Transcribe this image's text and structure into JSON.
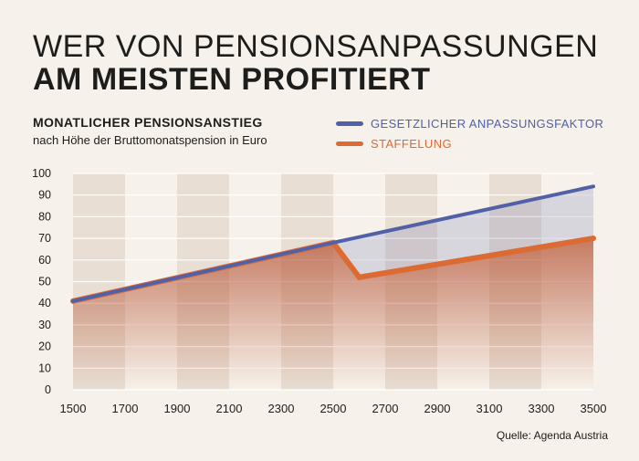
{
  "header": {
    "title_line1": "WER VON PENSIONSANPASSUNGEN",
    "title_line2": "AM MEISTEN PROFITIERT",
    "subtitle": "MONATLICHER PENSIONSANSTIEG",
    "subtitle2": "nach Höhe der Bruttomonatspension in Euro"
  },
  "source": "Quelle: Agenda Austria",
  "colors": {
    "background": "#f6f1ea",
    "band": "#e8ded3",
    "blue": "#5260a8",
    "orange": "#dc6a33",
    "text": "#1d1d1b"
  },
  "chart_data": {
    "type": "line",
    "title": "MONATLICHER PENSIONSANSTIEG",
    "subtitle": "nach Höhe der Bruttomonatspension in Euro",
    "xlabel": "",
    "ylabel": "",
    "x_ticks": [
      1500,
      1700,
      1900,
      2100,
      2300,
      2500,
      2700,
      2900,
      3100,
      3300,
      3500
    ],
    "y_ticks": [
      0,
      10,
      20,
      30,
      40,
      50,
      60,
      70,
      80,
      90,
      100
    ],
    "xlim": [
      1500,
      3500
    ],
    "ylim": [
      0,
      100
    ],
    "legend_position": "top-right",
    "series": [
      {
        "name": "GESETZLICHER ANPASSUNGSFAKTOR",
        "color": "#5260a8",
        "points": [
          [
            1500,
            41
          ],
          [
            2500,
            68
          ],
          [
            3500,
            94
          ]
        ]
      },
      {
        "name": "STAFFELUNG",
        "color": "#dc6a33",
        "points": [
          [
            1500,
            41
          ],
          [
            2500,
            68
          ],
          [
            2600,
            52
          ],
          [
            3500,
            70
          ]
        ]
      }
    ]
  }
}
